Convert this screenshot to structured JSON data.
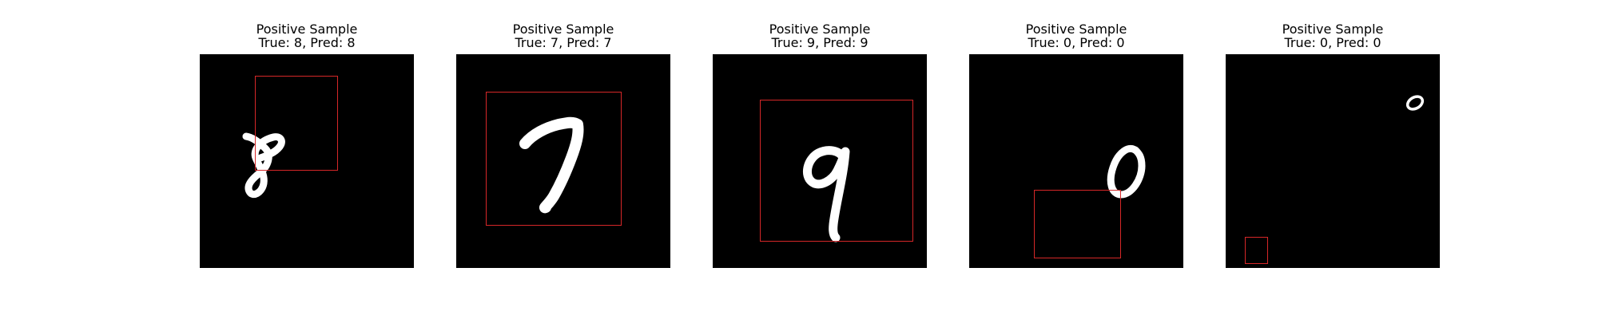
{
  "figure": {
    "background": "#ffffff",
    "image_background": "#000000",
    "box_color": "#d62728"
  },
  "samples": [
    {
      "title": "Positive Sample",
      "subtitle": "True: 8, Pred: 8",
      "digit": "8"
    },
    {
      "title": "Positive Sample",
      "subtitle": "True: 7, Pred: 7",
      "digit": "7"
    },
    {
      "title": "Positive Sample",
      "subtitle": "True: 9, Pred: 9",
      "digit": "9"
    },
    {
      "title": "Positive Sample",
      "subtitle": "True: 0, Pred: 0",
      "digit": "0"
    },
    {
      "title": "Positive Sample",
      "subtitle": "True: 0, Pred: 0",
      "digit": "0"
    }
  ]
}
